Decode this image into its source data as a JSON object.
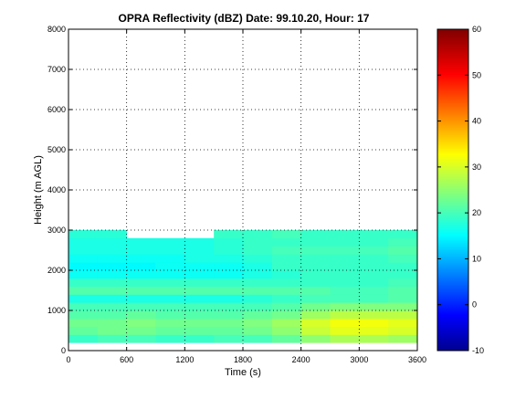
{
  "chart_data": {
    "type": "heatmap",
    "title": "OPRA Reflectivity (dBZ)  Date: 99.10.20, Hour: 17",
    "xlabel": "Time (s)",
    "ylabel": "Height (m AGL)",
    "xlim": [
      0,
      3600
    ],
    "ylim": [
      0,
      8000
    ],
    "xticks": [
      0,
      600,
      1200,
      1800,
      2400,
      3000,
      3600
    ],
    "yticks": [
      0,
      1000,
      2000,
      3000,
      4000,
      5000,
      6000,
      7000,
      8000
    ],
    "grid": true,
    "colorbar": {
      "min": -10,
      "max": 60,
      "ticks": [
        -10,
        0,
        10,
        20,
        30,
        40,
        50,
        60
      ],
      "colormap": "jet"
    },
    "x_bins": [
      0,
      300,
      600,
      900,
      1200,
      1500,
      1800,
      2100,
      2400,
      2700,
      3000,
      3300
    ],
    "x_bin_width": 300,
    "height_bins": [
      300,
      500,
      700,
      900,
      1100,
      1300,
      1500,
      1700,
      1900,
      2100,
      2300,
      2500,
      2700,
      2900
    ],
    "height_bin_width": 200,
    "values_dbz": [
      [
        20,
        21,
        21,
        20,
        20,
        21,
        21,
        23,
        26,
        28,
        28,
        27
      ],
      [
        23,
        24,
        24,
        23,
        23,
        23,
        24,
        26,
        30,
        32,
        32,
        31
      ],
      [
        24,
        24,
        25,
        24,
        24,
        24,
        25,
        27,
        31,
        33,
        33,
        32
      ],
      [
        22,
        22,
        23,
        22,
        22,
        22,
        23,
        24,
        27,
        29,
        29,
        29
      ],
      [
        21,
        21,
        21,
        21,
        21,
        21,
        21,
        22,
        24,
        25,
        25,
        25
      ],
      [
        18,
        18,
        18,
        18,
        18,
        18,
        19,
        20,
        21,
        21,
        21,
        22
      ],
      [
        22,
        22,
        22,
        22,
        22,
        22,
        22,
        22,
        22,
        21,
        21,
        22
      ],
      [
        20,
        20,
        20,
        20,
        20,
        20,
        20,
        20,
        20,
        20,
        20,
        21
      ],
      [
        17,
        17,
        17,
        17,
        17,
        17,
        18,
        19,
        20,
        20,
        20,
        20
      ],
      [
        16,
        16,
        16,
        17,
        17,
        17,
        18,
        20,
        20,
        20,
        20,
        20
      ],
      [
        17,
        17,
        17,
        17,
        18,
        18,
        19,
        20,
        20,
        20,
        20,
        21
      ],
      [
        18,
        18,
        18,
        18,
        18,
        19,
        20,
        21,
        21,
        21,
        21,
        22
      ],
      [
        18,
        18,
        18,
        18,
        18,
        19,
        20,
        20,
        20,
        20,
        20,
        21
      ],
      [
        19,
        19,
        null,
        null,
        null,
        20,
        20,
        21,
        20,
        20,
        20,
        20
      ]
    ]
  }
}
